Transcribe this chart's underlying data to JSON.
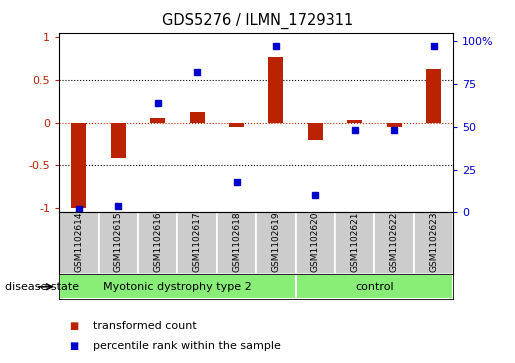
{
  "title": "GDS5276 / ILMN_1729311",
  "samples": [
    "GSM1102614",
    "GSM1102615",
    "GSM1102616",
    "GSM1102617",
    "GSM1102618",
    "GSM1102619",
    "GSM1102620",
    "GSM1102621",
    "GSM1102622",
    "GSM1102623"
  ],
  "red_values": [
    -1.0,
    -0.42,
    0.05,
    0.12,
    -0.05,
    0.77,
    -0.2,
    0.03,
    -0.05,
    0.62
  ],
  "blue_values": [
    2,
    4,
    64,
    82,
    18,
    97,
    10,
    48,
    48,
    97
  ],
  "ylim_left": [
    -1.05,
    1.05
  ],
  "ylim_right": [
    0,
    105
  ],
  "group1_label": "Myotonic dystrophy type 2",
  "group2_label": "control",
  "disease_state_label": "disease state",
  "legend1_label": "transformed count",
  "legend2_label": "percentile rank within the sample",
  "red_color": "#bb2200",
  "blue_color": "#0000cc",
  "group_color": "#88ee77",
  "sample_bg_color": "#cccccc",
  "sample_border_color": "#ffffff",
  "dotted_color": "#000000",
  "zero_line_color": "#cc2200"
}
